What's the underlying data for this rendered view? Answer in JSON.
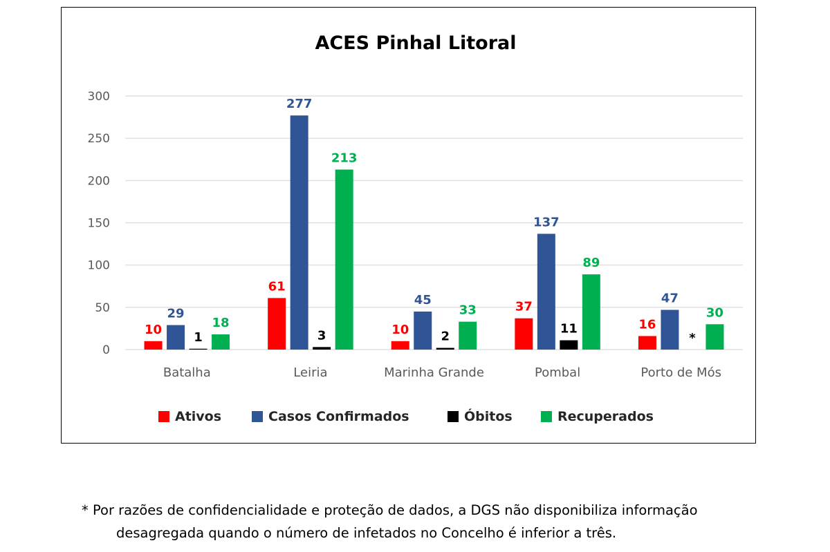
{
  "chart_data": {
    "type": "bar",
    "title": "ACES Pinhal Litoral",
    "categories": [
      "Batalha",
      "Leiria",
      "Marinha Grande",
      "Pombal",
      "Porto de Mós"
    ],
    "ylim": [
      0,
      300
    ],
    "yticks": [
      0,
      50,
      100,
      150,
      200,
      250,
      300
    ],
    "grid": true,
    "legend_position": "bottom",
    "series": [
      {
        "name": "Ativos",
        "color": "#ff0000",
        "values": [
          10,
          61,
          10,
          37,
          16
        ],
        "labels": [
          "10",
          "61",
          "10",
          "37",
          "16"
        ]
      },
      {
        "name": "Casos Confirmados",
        "color": "#2f5597",
        "values": [
          29,
          277,
          45,
          137,
          47
        ],
        "labels": [
          "29",
          "277",
          "45",
          "137",
          "47"
        ]
      },
      {
        "name": "Óbitos",
        "color": "#000000",
        "values": [
          1,
          3,
          2,
          11,
          null
        ],
        "labels": [
          "1",
          "3",
          "2",
          "11",
          "*"
        ]
      },
      {
        "name": "Recuperados",
        "color": "#00b050",
        "values": [
          18,
          213,
          33,
          89,
          30
        ],
        "labels": [
          "18",
          "213",
          "33",
          "89",
          "30"
        ]
      }
    ]
  },
  "footnote": {
    "line1": "* Por razões de confidencialidade e proteção de dados, a DGS não disponibiliza informação",
    "line2": "desagregada quando o número de infetados no Concelho é inferior a três."
  }
}
